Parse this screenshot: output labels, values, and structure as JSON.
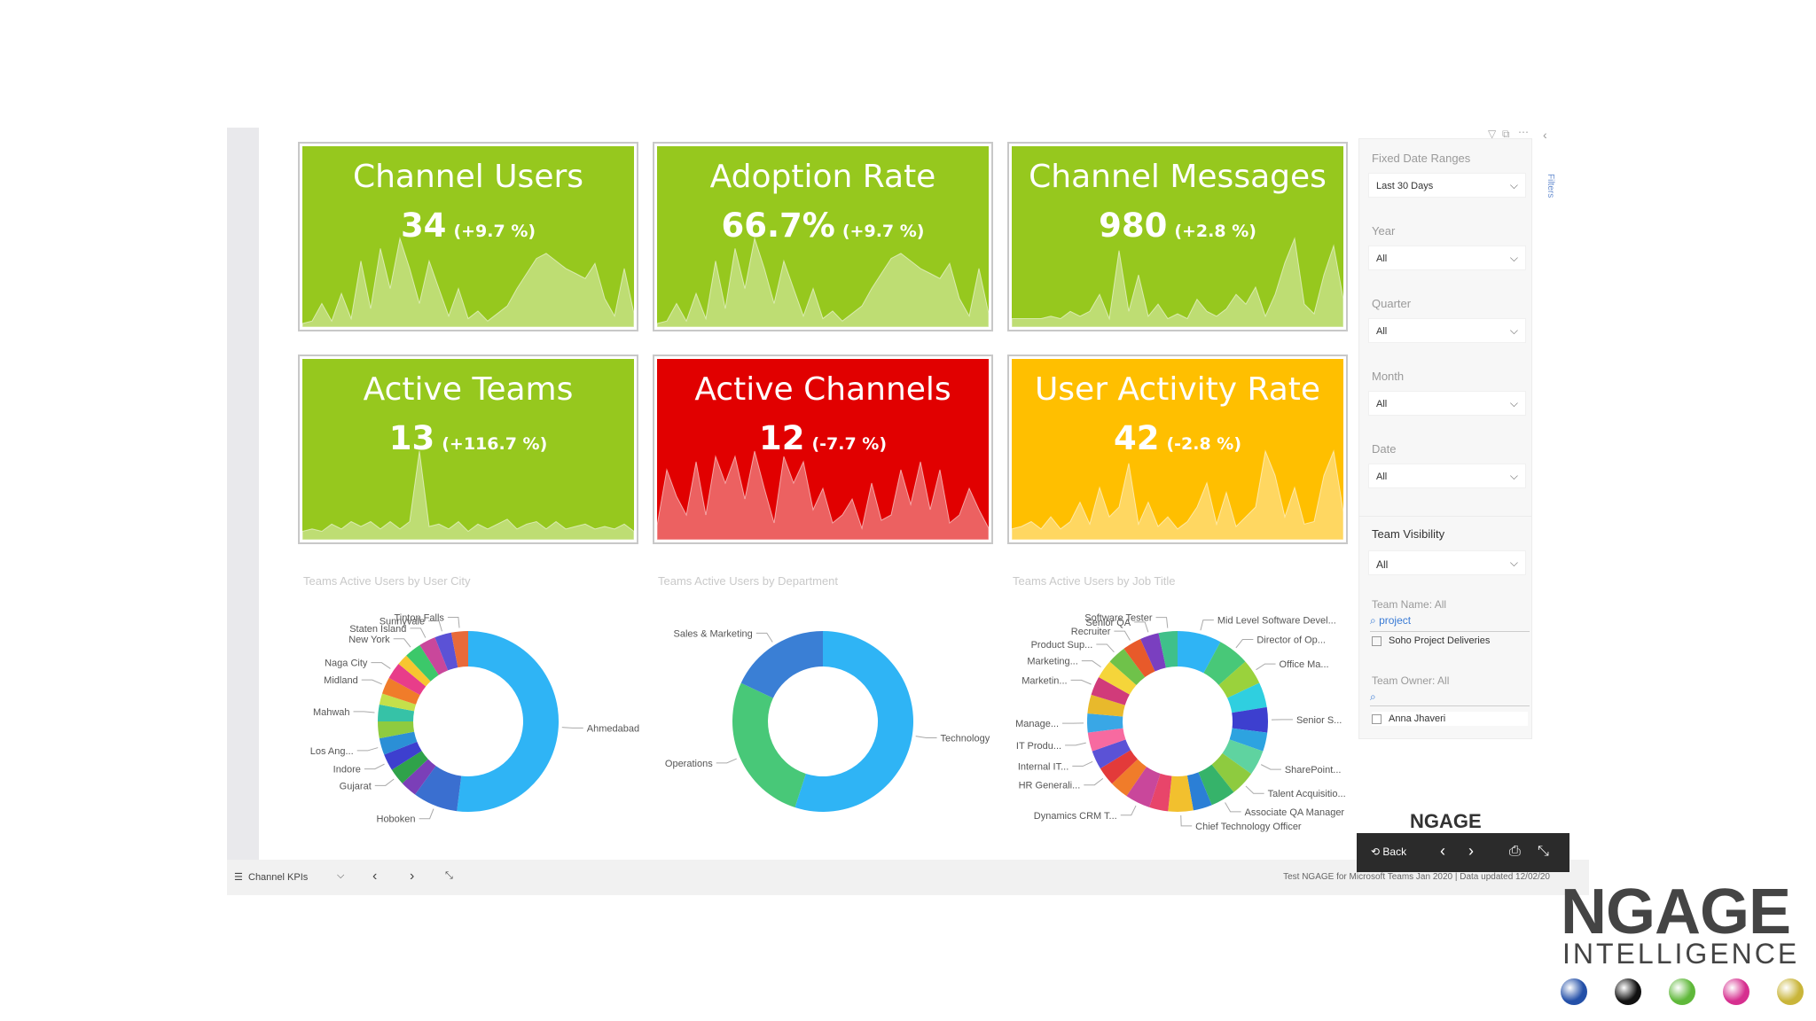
{
  "kpis": [
    {
      "title": "Channel Users",
      "value": "34",
      "change": "(+9.7 %)",
      "color": "#96c81e",
      "series": [
        0,
        1,
        8,
        1,
        12,
        2,
        25,
        6,
        30,
        14,
        34,
        22,
        8,
        25,
        14,
        3,
        14,
        2,
        5,
        1,
        4,
        7,
        14,
        20,
        26,
        28,
        25,
        22,
        20,
        18,
        24,
        10,
        3,
        22,
        4
      ]
    },
    {
      "title": "Adoption Rate",
      "value": "66.7%",
      "change": "(+9.7 %)",
      "color": "#96c81e",
      "series": [
        0,
        1,
        8,
        1,
        12,
        2,
        25,
        6,
        30,
        14,
        34,
        22,
        8,
        25,
        14,
        3,
        14,
        2,
        5,
        1,
        4,
        7,
        14,
        20,
        26,
        28,
        25,
        22,
        20,
        18,
        24,
        10,
        3,
        22,
        4
      ]
    },
    {
      "title": "Channel Messages",
      "value": "980",
      "change": "(+2.8 %)",
      "color": "#96c81e",
      "series": [
        2,
        2,
        2,
        2,
        3,
        2,
        5,
        3,
        5,
        12,
        2,
        30,
        5,
        20,
        3,
        8,
        2,
        4,
        2,
        10,
        5,
        3,
        6,
        12,
        8,
        15,
        3,
        12,
        25,
        35,
        8,
        4,
        20,
        32,
        10
      ]
    },
    {
      "title": "Active Teams",
      "value": "13",
      "change": "(+116.7 %)",
      "color": "#96c81e",
      "series": [
        2,
        3,
        2,
        5,
        3,
        6,
        4,
        6,
        3,
        6,
        3,
        6,
        35,
        4,
        5,
        3,
        6,
        2,
        5,
        3,
        5,
        7,
        3,
        5,
        6,
        3,
        6,
        3,
        4,
        5,
        3,
        4,
        3,
        5,
        2
      ]
    },
    {
      "title": "Active Channels",
      "value": "12",
      "change": "(-7.7 %)",
      "color": "#e10000",
      "series": [
        4,
        25,
        15,
        8,
        28,
        8,
        30,
        20,
        30,
        14,
        32,
        18,
        5,
        30,
        20,
        28,
        10,
        18,
        5,
        8,
        14,
        3,
        20,
        6,
        8,
        25,
        12,
        28,
        10,
        25,
        5,
        8,
        18,
        10,
        3
      ]
    },
    {
      "title": "User Activity Rate",
      "value": "42",
      "change": "(-2.8 %)",
      "color": "#ffbf00",
      "series": [
        3,
        4,
        6,
        3,
        8,
        3,
        6,
        14,
        5,
        20,
        8,
        12,
        30,
        5,
        14,
        4,
        8,
        3,
        6,
        12,
        22,
        5,
        18,
        4,
        8,
        12,
        35,
        25,
        8,
        20,
        5,
        6,
        25,
        35,
        10
      ]
    }
  ],
  "donuts": [
    {
      "title": "Teams Active Users by User City",
      "slices": [
        {
          "label": "Ahmedabad",
          "v": 52,
          "c": "#2fb4f5"
        },
        {
          "label": "Hoboken",
          "v": 8,
          "c": "#3a6fd0"
        },
        {
          "label": "",
          "v": 3,
          "c": "#7b3fb8"
        },
        {
          "label": "Gujarat",
          "v": 3,
          "c": "#2fa24a"
        },
        {
          "label": "Indore",
          "v": 3,
          "c": "#3d3fcf"
        },
        {
          "label": "Los Ang...",
          "v": 3,
          "c": "#2b8fd6"
        },
        {
          "label": "",
          "v": 3,
          "c": "#8ecb3f"
        },
        {
          "label": "Mahwah",
          "v": 3,
          "c": "#36c2a7"
        },
        {
          "label": "",
          "v": 2,
          "c": "#c5e04a"
        },
        {
          "label": "Midland",
          "v": 3,
          "c": "#f07c2a"
        },
        {
          "label": "Naga City",
          "v": 3,
          "c": "#e83d8a"
        },
        {
          "label": "",
          "v": 2,
          "c": "#f7c630"
        },
        {
          "label": "New York",
          "v": 3,
          "c": "#3cc86a"
        },
        {
          "label": "Staten Island",
          "v": 3,
          "c": "#c9479b"
        },
        {
          "label": "Sunnyvale",
          "v": 3,
          "c": "#5b52d6"
        },
        {
          "label": "Tinton Falls",
          "v": 3,
          "c": "#e86a3a"
        }
      ]
    },
    {
      "title": "Teams Active Users by Department",
      "slices": [
        {
          "label": "Technology",
          "v": 55,
          "c": "#2fb4f5"
        },
        {
          "label": "Operations",
          "v": 27,
          "c": "#48c878"
        },
        {
          "label": "Sales & Marketing",
          "v": 18,
          "c": "#3a7fd5"
        }
      ]
    },
    {
      "title": "Teams Active Users by Job Title",
      "slices": [
        {
          "label": "Mid Level Software Devel...",
          "v": 7,
          "c": "#2fb4f5"
        },
        {
          "label": "Director of Op...",
          "v": 5,
          "c": "#48c878"
        },
        {
          "label": "Office Ma...",
          "v": 4,
          "c": "#9ad23c"
        },
        {
          "label": "",
          "v": 4,
          "c": "#2fcfe0"
        },
        {
          "label": "Senior S...",
          "v": 4,
          "c": "#3d3fcf"
        },
        {
          "label": "",
          "v": 3,
          "c": "#2da3e0"
        },
        {
          "label": "SharePoint...",
          "v": 4,
          "c": "#5fd3a0"
        },
        {
          "label": "Talent Acquisitio...",
          "v": 4,
          "c": "#8ecb3f"
        },
        {
          "label": "Associate QA Manager",
          "v": 4,
          "c": "#36b36a"
        },
        {
          "label": "",
          "v": 3,
          "c": "#2b7fd6"
        },
        {
          "label": "Chief Technology Officer",
          "v": 4,
          "c": "#f2c02e"
        },
        {
          "label": "",
          "v": 3,
          "c": "#e8456a"
        },
        {
          "label": "Dynamics CRM T...",
          "v": 4,
          "c": "#c9479b"
        },
        {
          "label": "",
          "v": 3,
          "c": "#f07c2a"
        },
        {
          "label": "HR Generali...",
          "v": 3,
          "c": "#e33a3a"
        },
        {
          "label": "Internal IT...",
          "v": 3,
          "c": "#5b52d6"
        },
        {
          "label": "IT Produ...",
          "v": 3,
          "c": "#f76aa0"
        },
        {
          "label": "Manage...",
          "v": 3,
          "c": "#39a7e6"
        },
        {
          "label": "",
          "v": 3,
          "c": "#e8b92c"
        },
        {
          "label": "Marketin...",
          "v": 3,
          "c": "#d13b7a"
        },
        {
          "label": "Marketing...",
          "v": 3,
          "c": "#f5d53a"
        },
        {
          "label": "Product Sup...",
          "v": 3,
          "c": "#6fc24a"
        },
        {
          "label": "Recruiter",
          "v": 3,
          "c": "#e85a2a"
        },
        {
          "label": "Senior QA",
          "v": 3,
          "c": "#7a3fc0"
        },
        {
          "label": "Software Tester",
          "v": 3,
          "c": "#3fc08a"
        }
      ]
    }
  ],
  "filters": {
    "fixed_date_label": "Fixed Date Ranges",
    "fixed_date_value": "Last 30 Days",
    "year_label": "Year",
    "year_value": "All",
    "quarter_label": "Quarter",
    "quarter_value": "All",
    "month_label": "Month",
    "month_value": "All",
    "date_label": "Date",
    "date_value": "All",
    "team_visibility_label": "Team Visibility",
    "team_visibility_value": "All",
    "team_name_label": "Team Name: All",
    "team_name_search": "project",
    "team_name_item": "Soho Project Deliveries",
    "team_owner_label": "Team Owner: All",
    "team_owner_item": "Anna Jhaveri",
    "side_tab": "Filters"
  },
  "pager": {
    "page_name": "Channel KPIs",
    "footer": "Test NGAGE for Microsoft Teams Jan 2020  |  Data updated 12/02/20"
  },
  "toolbar": {
    "back": "Back"
  },
  "brand": {
    "small": "NGAGE",
    "big": "NGAGE",
    "sub": "INTELLIGENCE",
    "dots": [
      "#2450a8",
      "#111111",
      "#5fb83a",
      "#d62f8f",
      "#c9b53a"
    ]
  }
}
